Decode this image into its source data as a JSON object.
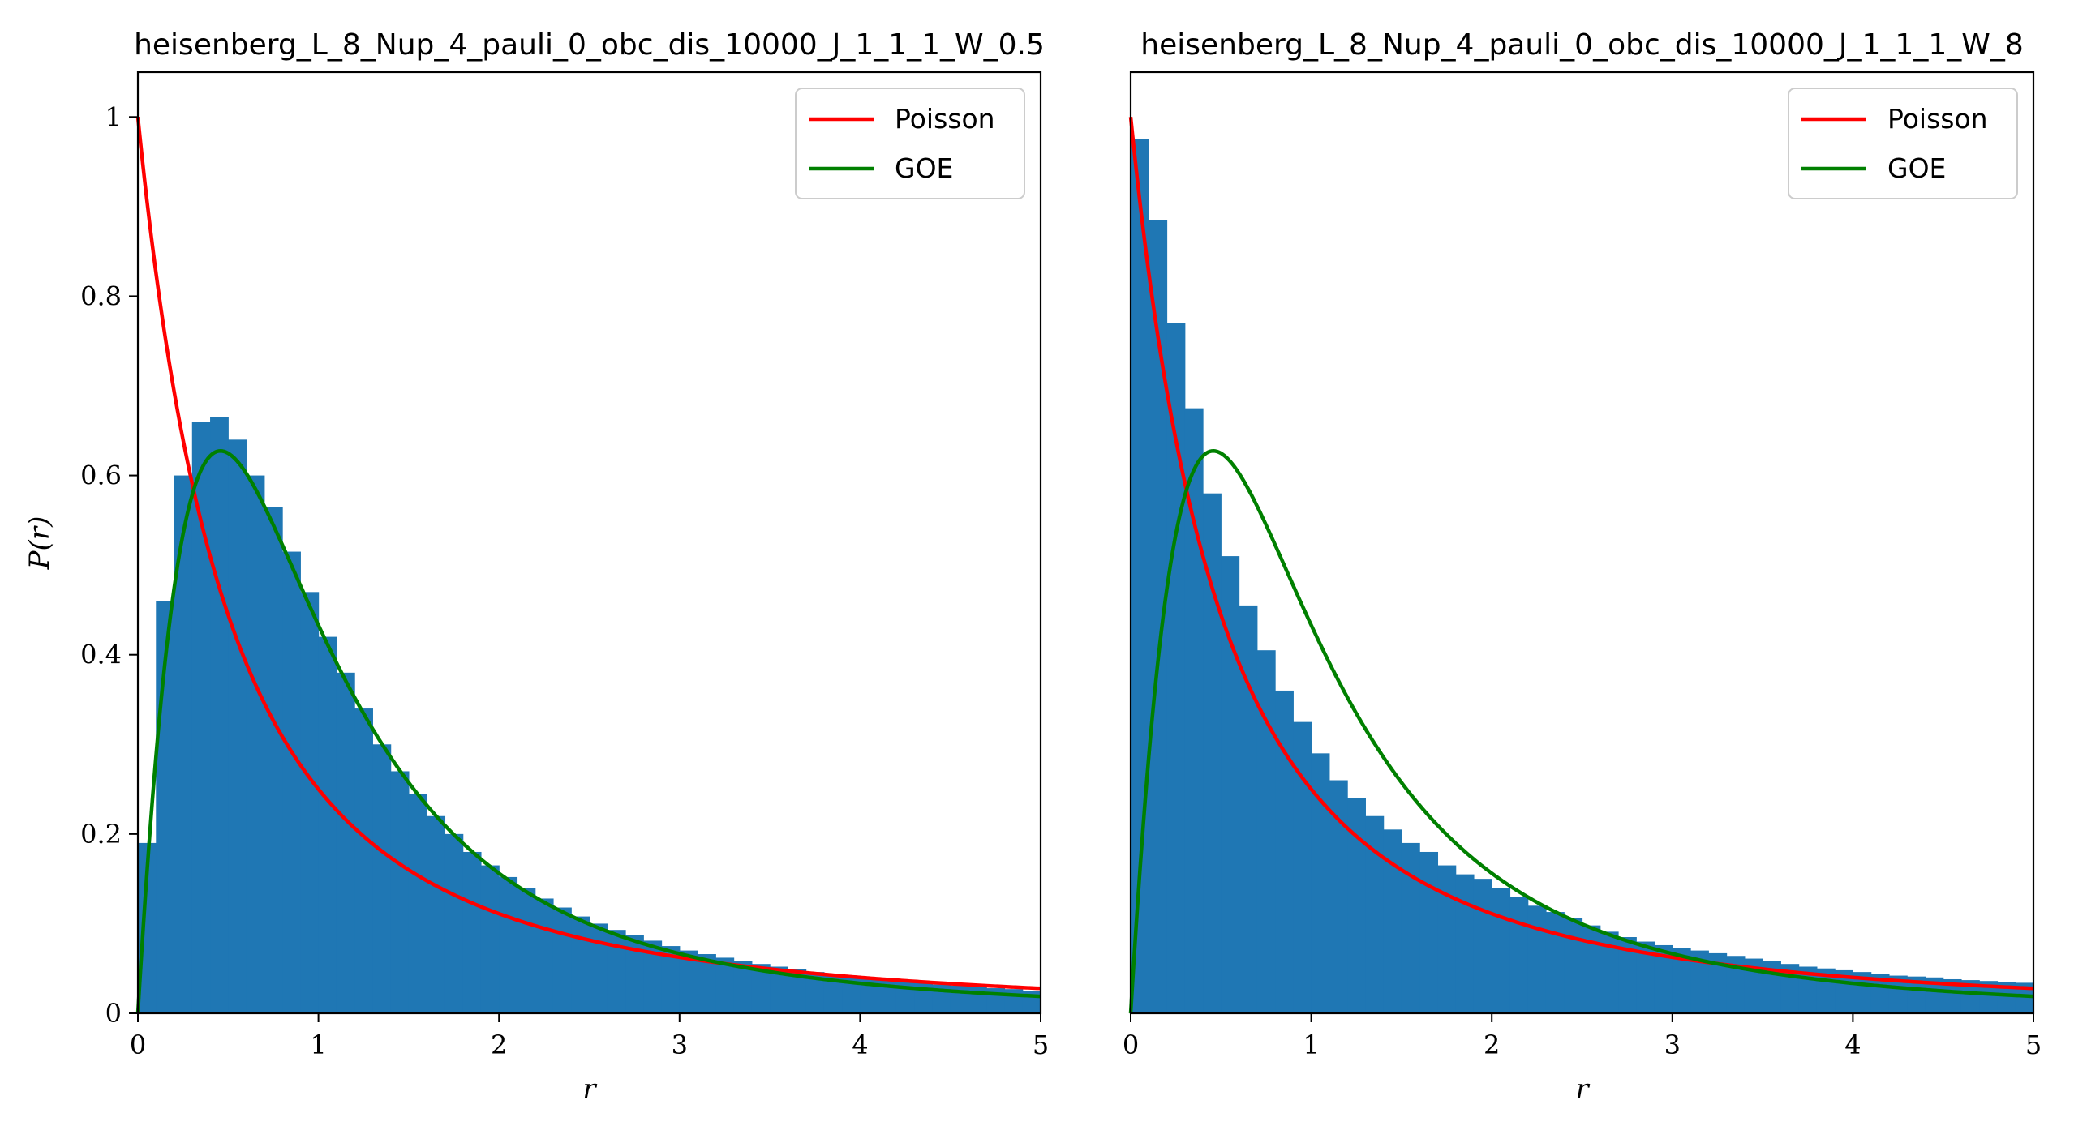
{
  "chart_data": [
    {
      "type": "bar",
      "title": "heisenberg_L_8_Nup_4_pauli_0_obc_dis_10000_J_1_1_1_W_0.5",
      "xlabel": "r",
      "ylabel": "P(r)",
      "xlim": [
        0,
        5
      ],
      "ylim": [
        0,
        1.05
      ],
      "xticks": [
        "0",
        "1",
        "2",
        "3",
        "4",
        "5"
      ],
      "yticks": [
        "0",
        "0.2",
        "0.4",
        "0.6",
        "0.8",
        "1"
      ],
      "show_ylabel": true,
      "show_yticklabels": true,
      "grid": false,
      "legend_position": "top-right",
      "colors": {
        "hist": "#1f77b4",
        "poisson": "#ff0000",
        "goe": "#008000"
      },
      "bin_width": 0.1,
      "bin_heights": [
        0.19,
        0.46,
        0.6,
        0.66,
        0.665,
        0.64,
        0.6,
        0.565,
        0.515,
        0.47,
        0.42,
        0.38,
        0.34,
        0.3,
        0.27,
        0.245,
        0.22,
        0.2,
        0.18,
        0.165,
        0.152,
        0.14,
        0.128,
        0.118,
        0.108,
        0.1,
        0.093,
        0.087,
        0.081,
        0.075,
        0.07,
        0.066,
        0.062,
        0.058,
        0.055,
        0.052,
        0.049,
        0.046,
        0.044,
        0.042,
        0.04,
        0.038,
        0.036,
        0.034,
        0.032,
        0.031,
        0.029,
        0.028,
        0.027,
        0.025
      ],
      "series": [
        {
          "name": "Poisson",
          "function": "poisson"
        },
        {
          "name": "GOE",
          "function": "goe"
        }
      ]
    },
    {
      "type": "bar",
      "title": "heisenberg_L_8_Nup_4_pauli_0_obc_dis_10000_J_1_1_1_W_8",
      "xlabel": "r",
      "ylabel": "",
      "xlim": [
        0,
        5
      ],
      "ylim": [
        0,
        1.05
      ],
      "xticks": [
        "0",
        "1",
        "2",
        "3",
        "4",
        "5"
      ],
      "yticks": [],
      "show_ylabel": false,
      "show_yticklabels": false,
      "grid": false,
      "legend_position": "top-right",
      "colors": {
        "hist": "#1f77b4",
        "poisson": "#ff0000",
        "goe": "#008000"
      },
      "bin_width": 0.1,
      "bin_heights": [
        0.975,
        0.885,
        0.77,
        0.675,
        0.58,
        0.51,
        0.455,
        0.405,
        0.36,
        0.325,
        0.29,
        0.26,
        0.24,
        0.22,
        0.205,
        0.19,
        0.18,
        0.165,
        0.155,
        0.15,
        0.14,
        0.13,
        0.12,
        0.113,
        0.106,
        0.098,
        0.091,
        0.085,
        0.08,
        0.076,
        0.073,
        0.07,
        0.067,
        0.064,
        0.061,
        0.058,
        0.055,
        0.052,
        0.05,
        0.048,
        0.046,
        0.044,
        0.042,
        0.041,
        0.04,
        0.038,
        0.037,
        0.036,
        0.035,
        0.034
      ],
      "series": [
        {
          "name": "Poisson",
          "function": "poisson"
        },
        {
          "name": "GOE",
          "function": "goe"
        }
      ]
    }
  ]
}
